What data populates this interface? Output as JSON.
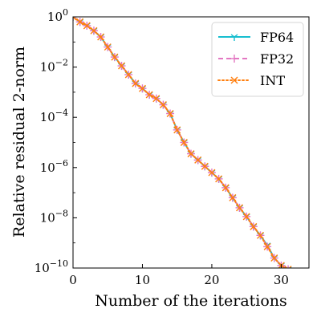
{
  "chart_data": {
    "type": "line",
    "xlabel": "Number of the iterations",
    "ylabel": "Relative residual 2-norm",
    "xlim": [
      0,
      34
    ],
    "ylim_log10": [
      -10,
      0
    ],
    "yscale": "log",
    "x_ticks": [
      0,
      10,
      20,
      30
    ],
    "y_ticks": [
      {
        "base": "10",
        "exp": "0"
      },
      {
        "base": "10",
        "exp": "−2"
      },
      {
        "base": "10",
        "exp": "−4"
      },
      {
        "base": "10",
        "exp": "−6"
      },
      {
        "base": "10",
        "exp": "−8"
      },
      {
        "base": "10",
        "exp": "−10"
      }
    ],
    "y_tick_values_log10": [
      0,
      -2,
      -4,
      -6,
      -8,
      -10
    ],
    "legend_position": "top-right",
    "grid": false,
    "x": [
      0,
      1,
      2,
      3,
      4,
      5,
      6,
      7,
      8,
      9,
      10,
      11,
      12,
      13,
      14,
      15,
      16,
      17,
      18,
      19,
      20,
      21,
      22,
      23,
      24,
      25,
      26,
      27,
      28,
      29,
      30,
      31,
      32,
      33,
      34
    ],
    "series": [
      {
        "name": "FP64",
        "color": "#17becf",
        "marker": "tri-down",
        "line": "solid",
        "log10_values": [
          0,
          -0.2,
          -0.35,
          -0.55,
          -0.8,
          -1.2,
          -1.6,
          -1.95,
          -2.3,
          -2.65,
          -2.85,
          -3.1,
          -3.25,
          -3.5,
          -3.85,
          -4.5,
          -5.0,
          -5.45,
          -5.7,
          -5.95,
          -6.2,
          -6.45,
          -6.8,
          -7.2,
          -7.6,
          -7.95,
          -8.35,
          -8.7,
          -9.1,
          -9.6,
          -9.9,
          -10.05,
          -10.25,
          -10.45,
          -10.6
        ]
      },
      {
        "name": "FP32",
        "color": "#e377c2",
        "marker": "plus",
        "line": "dashed",
        "log10_values": [
          0,
          -0.2,
          -0.35,
          -0.55,
          -0.8,
          -1.2,
          -1.6,
          -1.95,
          -2.3,
          -2.65,
          -2.85,
          -3.1,
          -3.25,
          -3.5,
          -3.85,
          -4.5,
          -5.0,
          -5.45,
          -5.7,
          -5.95,
          -6.2,
          -6.45,
          -6.8,
          -7.2,
          -7.6,
          -7.95,
          -8.35,
          -8.7,
          -9.15,
          -9.6,
          -9.9,
          -10.05,
          -10.25,
          -10.45,
          -10.6
        ]
      },
      {
        "name": "INT",
        "color": "#ff7f0e",
        "marker": "x",
        "line": "dotted",
        "log10_values": [
          0,
          -0.2,
          -0.35,
          -0.55,
          -0.8,
          -1.2,
          -1.6,
          -1.95,
          -2.3,
          -2.65,
          -2.85,
          -3.1,
          -3.25,
          -3.5,
          -3.85,
          -4.5,
          -5.0,
          -5.45,
          -5.7,
          -5.95,
          -6.2,
          -6.45,
          -6.8,
          -7.2,
          -7.6,
          -7.95,
          -8.35,
          -8.7,
          -9.15,
          -9.6,
          -9.9,
          -10.05,
          -10.25,
          -10.45,
          -10.6
        ]
      }
    ]
  }
}
